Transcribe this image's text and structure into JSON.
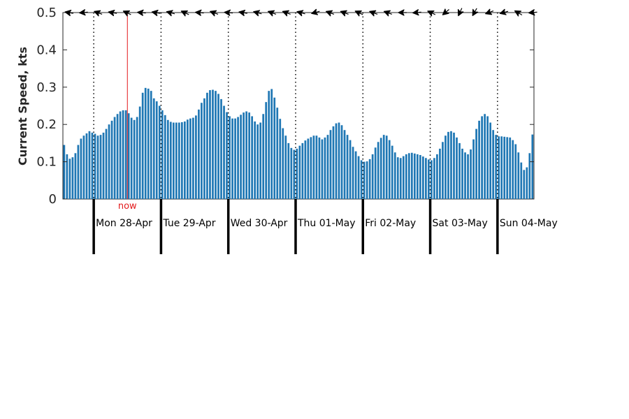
{
  "chart_data": {
    "type": "bar",
    "title": "",
    "xlabel": "",
    "ylabel": "Current Speed, kts",
    "ylim": [
      0,
      0.5
    ],
    "yticks": [
      0,
      0.1,
      0.2,
      0.3,
      0.4,
      0.5
    ],
    "ytick_labels": [
      "0",
      "0.1",
      "0.2",
      "0.3",
      "0.4",
      "0.5"
    ],
    "days": [
      "Mon 28-Apr",
      "Tue 29-Apr",
      "Wed 30-Apr",
      "Thu 01-May",
      "Fri 02-May",
      "Sat 03-May",
      "Sun 04-May"
    ],
    "hours_before_first_midnight": 11,
    "hours_per_day": 24,
    "now_hour": 23,
    "now_label": "now",
    "grid": false,
    "colors": {
      "bar": "#1f77b4",
      "now": "#e31a1c",
      "axis": "#262626"
    },
    "values": [
      0.145,
      0.12,
      0.108,
      0.112,
      0.123,
      0.145,
      0.162,
      0.17,
      0.176,
      0.182,
      0.178,
      0.175,
      0.17,
      0.172,
      0.178,
      0.188,
      0.2,
      0.21,
      0.22,
      0.228,
      0.235,
      0.238,
      0.238,
      0.23,
      0.218,
      0.212,
      0.22,
      0.248,
      0.285,
      0.298,
      0.296,
      0.29,
      0.27,
      0.262,
      0.25,
      0.238,
      0.225,
      0.212,
      0.207,
      0.205,
      0.205,
      0.205,
      0.206,
      0.208,
      0.213,
      0.216,
      0.218,
      0.224,
      0.24,
      0.258,
      0.27,
      0.285,
      0.292,
      0.293,
      0.29,
      0.282,
      0.268,
      0.25,
      0.233,
      0.222,
      0.216,
      0.216,
      0.22,
      0.226,
      0.232,
      0.235,
      0.232,
      0.222,
      0.208,
      0.2,
      0.205,
      0.228,
      0.26,
      0.29,
      0.295,
      0.272,
      0.245,
      0.215,
      0.19,
      0.17,
      0.15,
      0.137,
      0.132,
      0.135,
      0.143,
      0.15,
      0.157,
      0.162,
      0.166,
      0.17,
      0.17,
      0.165,
      0.16,
      0.165,
      0.172,
      0.185,
      0.195,
      0.203,
      0.205,
      0.198,
      0.185,
      0.172,
      0.158,
      0.14,
      0.128,
      0.115,
      0.104,
      0.1,
      0.101,
      0.107,
      0.12,
      0.138,
      0.153,
      0.164,
      0.172,
      0.17,
      0.158,
      0.143,
      0.125,
      0.112,
      0.11,
      0.115,
      0.12,
      0.123,
      0.124,
      0.122,
      0.12,
      0.118,
      0.114,
      0.11,
      0.106,
      0.104,
      0.11,
      0.12,
      0.135,
      0.153,
      0.17,
      0.18,
      0.182,
      0.178,
      0.165,
      0.15,
      0.135,
      0.125,
      0.12,
      0.133,
      0.16,
      0.188,
      0.21,
      0.222,
      0.228,
      0.222,
      0.205,
      0.185,
      0.172,
      0.168,
      0.168,
      0.167,
      0.166,
      0.165,
      0.158,
      0.147,
      0.125,
      0.098,
      0.078,
      0.085,
      0.123,
      0.173
    ],
    "direction_arrows_deg": [
      190,
      175,
      200,
      190,
      205,
      185,
      190,
      195,
      205,
      185,
      200,
      185,
      190,
      195,
      200,
      200,
      195,
      165,
      200,
      200,
      205,
      200,
      200,
      180,
      175,
      205,
      140,
      115,
      120,
      160,
      165,
      210,
      175
    ]
  }
}
